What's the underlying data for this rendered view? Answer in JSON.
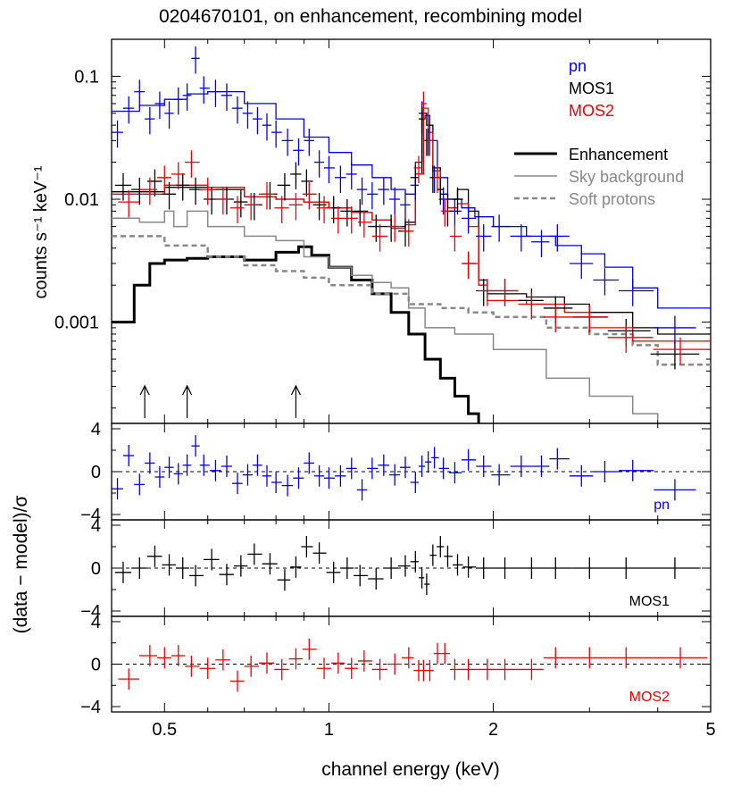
{
  "title": "0204670101, on enhancement, recombining model",
  "xlabel": "channel energy (keV)",
  "colors": {
    "pn": "#0000ee",
    "mos1": "#000000",
    "mos2": "#ee0000",
    "sky": "#888888",
    "sp": "#888888"
  },
  "chart_data": [
    {
      "panel": "spectrum",
      "type": "line",
      "xscale": "log",
      "yscale": "log",
      "xlim": [
        0.4,
        5.0
      ],
      "ylim": [
        0.00015,
        0.2
      ],
      "ylabel": "counts s⁻¹ keV⁻¹",
      "xticks": [
        0.5,
        1,
        2,
        5
      ],
      "xticklabels": [
        "0.5",
        "1",
        "2",
        "5"
      ],
      "yticks": [
        0.001,
        0.01,
        0.1
      ],
      "yticklabels": [
        "0.001",
        "0.01",
        "0.1"
      ],
      "legend": {
        "placement": "top-right",
        "instruments": [
          {
            "key": "pn",
            "label": "pn"
          },
          {
            "key": "mos1",
            "label": "MOS1"
          },
          {
            "key": "mos2",
            "label": "MOS2"
          }
        ],
        "components": [
          {
            "key": "enh",
            "label": "Enhancement"
          },
          {
            "key": "sky",
            "label": "Sky background"
          },
          {
            "key": "sp",
            "label": "Soft protons"
          }
        ]
      },
      "arrows_at_keV": [
        0.46,
        0.55,
        0.87
      ],
      "series": [
        {
          "name": "pn",
          "key": "pn",
          "kind": "data",
          "x": [
            0.41,
            0.43,
            0.45,
            0.47,
            0.49,
            0.51,
            0.53,
            0.55,
            0.57,
            0.59,
            0.62,
            0.65,
            0.68,
            0.71,
            0.74,
            0.77,
            0.8,
            0.84,
            0.88,
            0.92,
            0.96,
            1.0,
            1.05,
            1.1,
            1.15,
            1.2,
            1.26,
            1.32,
            1.38,
            1.44,
            1.48,
            1.52,
            1.56,
            1.62,
            1.7,
            1.8,
            1.92,
            2.05,
            2.25,
            2.45,
            2.62,
            2.9,
            3.2,
            3.6,
            4.3
          ],
          "y": [
            0.035,
            0.055,
            0.075,
            0.045,
            0.06,
            0.05,
            0.065,
            0.07,
            0.14,
            0.08,
            0.075,
            0.07,
            0.055,
            0.05,
            0.045,
            0.04,
            0.035,
            0.03,
            0.025,
            0.03,
            0.02,
            0.018,
            0.015,
            0.016,
            0.012,
            0.011,
            0.012,
            0.01,
            0.009,
            0.013,
            0.05,
            0.03,
            0.015,
            0.01,
            0.008,
            0.007,
            0.005,
            0.006,
            0.005,
            0.0045,
            0.005,
            0.003,
            0.0022,
            0.0018,
            0.0009
          ]
        },
        {
          "name": "MOS1",
          "key": "mos1",
          "kind": "data",
          "x": [
            0.42,
            0.45,
            0.48,
            0.51,
            0.54,
            0.57,
            0.61,
            0.65,
            0.69,
            0.73,
            0.78,
            0.83,
            0.87,
            0.91,
            0.96,
            1.02,
            1.08,
            1.14,
            1.22,
            1.3,
            1.38,
            1.44,
            1.48,
            1.51,
            1.55,
            1.6,
            1.65,
            1.72,
            1.8,
            1.92,
            2.1,
            2.35,
            2.6,
            3.0,
            3.5,
            4.3
          ],
          "y": [
            0.013,
            0.012,
            0.014,
            0.011,
            0.013,
            0.012,
            0.01,
            0.01,
            0.0095,
            0.009,
            0.011,
            0.013,
            0.016,
            0.014,
            0.009,
            0.0085,
            0.008,
            0.008,
            0.006,
            0.006,
            0.0055,
            0.015,
            0.045,
            0.03,
            0.015,
            0.012,
            0.008,
            0.01,
            0.003,
            0.0018,
            0.0018,
            0.0015,
            0.0013,
            0.0011,
            0.00085,
            0.00055
          ]
        },
        {
          "name": "MOS2",
          "key": "mos2",
          "kind": "data",
          "x": [
            0.43,
            0.47,
            0.5,
            0.53,
            0.56,
            0.6,
            0.64,
            0.68,
            0.72,
            0.77,
            0.82,
            0.87,
            0.92,
            0.98,
            1.04,
            1.1,
            1.16,
            1.24,
            1.32,
            1.4,
            1.46,
            1.49,
            1.53,
            1.58,
            1.63,
            1.7,
            1.8,
            1.95,
            2.1,
            2.35,
            2.6,
            3.0,
            3.5,
            4.4
          ],
          "y": [
            0.0095,
            0.012,
            0.015,
            0.016,
            0.02,
            0.012,
            0.01,
            0.0085,
            0.009,
            0.011,
            0.0085,
            0.009,
            0.011,
            0.0085,
            0.007,
            0.007,
            0.0065,
            0.005,
            0.006,
            0.0055,
            0.018,
            0.06,
            0.03,
            0.015,
            0.008,
            0.005,
            0.003,
            0.0018,
            0.0018,
            0.0014,
            0.0011,
            0.0011,
            0.00075,
            0.0006
          ]
        },
        {
          "name": "pn",
          "key": "pn",
          "kind": "model",
          "x": [
            0.4,
            0.45,
            0.5,
            0.55,
            0.6,
            0.7,
            0.8,
            0.9,
            1.0,
            1.1,
            1.2,
            1.3,
            1.38,
            1.44,
            1.48,
            1.5,
            1.53,
            1.58,
            1.65,
            1.75,
            1.85,
            2.0,
            2.3,
            2.6,
            2.9,
            3.2,
            3.6,
            4.0,
            5.0
          ],
          "y": [
            0.052,
            0.058,
            0.065,
            0.072,
            0.075,
            0.06,
            0.045,
            0.032,
            0.024,
            0.019,
            0.015,
            0.012,
            0.011,
            0.02,
            0.045,
            0.048,
            0.03,
            0.015,
            0.01,
            0.0085,
            0.0072,
            0.006,
            0.005,
            0.0042,
            0.0036,
            0.0028,
            0.0019,
            0.0013,
            0.0013
          ]
        },
        {
          "name": "MOS1",
          "key": "mos1",
          "kind": "model",
          "x": [
            0.4,
            0.5,
            0.6,
            0.7,
            0.8,
            0.9,
            1.0,
            1.1,
            1.2,
            1.3,
            1.38,
            1.44,
            1.48,
            1.51,
            1.55,
            1.6,
            1.65,
            1.72,
            1.8,
            1.88,
            1.95,
            2.3,
            2.7,
            3.0,
            3.6,
            4.0,
            5.0
          ],
          "y": [
            0.0115,
            0.0125,
            0.012,
            0.0105,
            0.01,
            0.0095,
            0.0085,
            0.0078,
            0.0068,
            0.006,
            0.0065,
            0.016,
            0.05,
            0.04,
            0.018,
            0.011,
            0.01,
            0.012,
            0.008,
            0.0022,
            0.0017,
            0.0016,
            0.0014,
            0.0012,
            0.0009,
            0.0008,
            0.0008
          ]
        },
        {
          "name": "MOS2",
          "key": "mos2",
          "kind": "model",
          "x": [
            0.4,
            0.5,
            0.6,
            0.7,
            0.8,
            0.9,
            1.0,
            1.1,
            1.2,
            1.3,
            1.38,
            1.44,
            1.49,
            1.52,
            1.55,
            1.6,
            1.65,
            1.72,
            1.8,
            1.88,
            1.95,
            2.3,
            2.7,
            3.0,
            3.6,
            4.0,
            5.0
          ],
          "y": [
            0.011,
            0.013,
            0.0125,
            0.0105,
            0.01,
            0.0095,
            0.0085,
            0.0078,
            0.0068,
            0.0058,
            0.0062,
            0.016,
            0.055,
            0.035,
            0.017,
            0.01,
            0.0085,
            0.0092,
            0.006,
            0.002,
            0.0015,
            0.0014,
            0.0012,
            0.0009,
            0.0007,
            0.0007,
            0.0007
          ]
        },
        {
          "name": "Enhancement",
          "key": "enh",
          "kind": "component",
          "x": [
            0.4,
            0.44,
            0.47,
            0.5,
            0.55,
            0.6,
            0.7,
            0.8,
            0.88,
            0.93,
            1.0,
            1.1,
            1.2,
            1.3,
            1.4,
            1.5,
            1.6,
            1.7,
            1.8,
            1.88
          ],
          "y": [
            0.001,
            0.002,
            0.003,
            0.0032,
            0.0033,
            0.0034,
            0.0032,
            0.0037,
            0.0041,
            0.0035,
            0.0028,
            0.0022,
            0.0017,
            0.0012,
            0.0008,
            0.0005,
            0.00035,
            0.00025,
            0.00018,
            0.00015
          ]
        },
        {
          "name": "Sky background",
          "key": "sky",
          "kind": "component",
          "x": [
            0.4,
            0.45,
            0.5,
            0.52,
            0.55,
            0.6,
            0.65,
            0.7,
            0.8,
            0.9,
            1.0,
            1.1,
            1.2,
            1.3,
            1.4,
            1.5,
            1.7,
            2.0,
            2.5,
            3.0,
            3.6,
            4.0
          ],
          "y": [
            0.007,
            0.0065,
            0.008,
            0.006,
            0.008,
            0.006,
            0.006,
            0.005,
            0.0046,
            0.0034,
            0.0028,
            0.0024,
            0.0021,
            0.0019,
            0.0013,
            0.0009,
            0.0008,
            0.0006,
            0.00035,
            0.00025,
            0.00018,
            0.00016
          ]
        },
        {
          "name": "Soft protons",
          "key": "sp",
          "kind": "component",
          "x": [
            0.4,
            0.5,
            0.6,
            0.7,
            0.8,
            0.9,
            1.0,
            1.2,
            1.4,
            1.6,
            1.8,
            2.0,
            2.5,
            3.0,
            3.6,
            4.0,
            5.0
          ],
          "y": [
            0.005,
            0.0042,
            0.0034,
            0.0029,
            0.0026,
            0.0023,
            0.002,
            0.0017,
            0.0014,
            0.0013,
            0.0012,
            0.0011,
            0.0009,
            0.0008,
            0.00065,
            0.00045,
            0.00045
          ]
        }
      ]
    },
    {
      "panel": "residuals-pn",
      "type": "scatter",
      "label": "pn",
      "color_key": "pn",
      "ylabel": "(data − model)/σ",
      "ylim": [
        -4.5,
        4.5
      ],
      "yticks": [
        4,
        0,
        -4
      ],
      "yticklabels": [
        "4",
        "0",
        "−4"
      ],
      "x": [
        0.41,
        0.43,
        0.45,
        0.47,
        0.49,
        0.51,
        0.53,
        0.55,
        0.57,
        0.59,
        0.62,
        0.65,
        0.68,
        0.71,
        0.74,
        0.77,
        0.8,
        0.84,
        0.88,
        0.92,
        0.96,
        1.0,
        1.05,
        1.1,
        1.15,
        1.2,
        1.26,
        1.32,
        1.38,
        1.44,
        1.48,
        1.52,
        1.56,
        1.62,
        1.7,
        1.8,
        1.92,
        2.05,
        2.25,
        2.45,
        2.62,
        2.9,
        3.2,
        3.6,
        4.3
      ],
      "y": [
        -1.6,
        1.5,
        -1.2,
        0.8,
        -0.5,
        0.4,
        -0.2,
        0.6,
        2.4,
        0.6,
        0.1,
        0.5,
        -1.1,
        -0.3,
        0.6,
        -0.4,
        -1.0,
        -1.3,
        -0.6,
        0.8,
        -0.4,
        -0.6,
        -0.4,
        0.3,
        -1.7,
        0.3,
        0.6,
        -0.3,
        0.4,
        -1.0,
        0.5,
        0.9,
        1.3,
        0.3,
        -0.1,
        1.1,
        0.5,
        -0.3,
        0.5,
        0.5,
        1.2,
        -0.4,
        0.0,
        0.1,
        -1.7
      ]
    },
    {
      "panel": "residuals-mos1",
      "type": "scatter",
      "label": "MOS1",
      "color_key": "mos1",
      "ylim": [
        -4.5,
        4.5
      ],
      "yticks": [
        4,
        0,
        -4
      ],
      "yticklabels": [
        "4",
        "0",
        "−4"
      ],
      "x": [
        0.42,
        0.45,
        0.48,
        0.51,
        0.54,
        0.57,
        0.61,
        0.65,
        0.69,
        0.73,
        0.78,
        0.83,
        0.87,
        0.91,
        0.96,
        1.02,
        1.08,
        1.14,
        1.22,
        1.3,
        1.38,
        1.44,
        1.48,
        1.51,
        1.55,
        1.6,
        1.65,
        1.72,
        1.8,
        1.92,
        2.1,
        2.35,
        2.6,
        3.0,
        3.5,
        4.3
      ],
      "y": [
        -0.4,
        0.0,
        1.1,
        0.3,
        0.0,
        -0.7,
        0.8,
        -0.6,
        0.2,
        1.3,
        0.4,
        -1.1,
        0.1,
        2.0,
        1.4,
        -0.4,
        0.0,
        -0.7,
        -1.0,
        0.0,
        0.2,
        0.6,
        -0.9,
        -1.5,
        1.2,
        2.0,
        1.1,
        0.3,
        0.1,
        0.0,
        0.0,
        0.0,
        0.0,
        0.0,
        0.0,
        0.0
      ]
    },
    {
      "panel": "residuals-mos2",
      "type": "scatter",
      "label": "MOS2",
      "color_key": "mos2",
      "ylim": [
        -4.5,
        4.5
      ],
      "yticks": [
        4,
        0,
        -4
      ],
      "yticklabels": [
        "4",
        "0",
        "−4"
      ],
      "x": [
        0.43,
        0.47,
        0.5,
        0.53,
        0.56,
        0.6,
        0.64,
        0.68,
        0.72,
        0.77,
        0.82,
        0.87,
        0.92,
        0.98,
        1.04,
        1.1,
        1.16,
        1.24,
        1.32,
        1.4,
        1.46,
        1.49,
        1.53,
        1.58,
        1.63,
        1.7,
        1.8,
        1.95,
        2.1,
        2.35,
        2.6,
        3.0,
        3.5,
        4.4
      ],
      "y": [
        -1.4,
        0.8,
        0.6,
        0.8,
        -0.2,
        -0.4,
        0.4,
        -1.6,
        -0.2,
        0.1,
        -0.5,
        0.5,
        1.4,
        -0.4,
        0.1,
        -0.4,
        0.3,
        -0.5,
        0.0,
        0.6,
        -0.6,
        -0.6,
        -0.6,
        1.0,
        1.0,
        -0.5,
        -0.5,
        -0.5,
        -0.5,
        -0.5,
        0.6,
        0.6,
        0.6,
        0.6
      ]
    }
  ]
}
